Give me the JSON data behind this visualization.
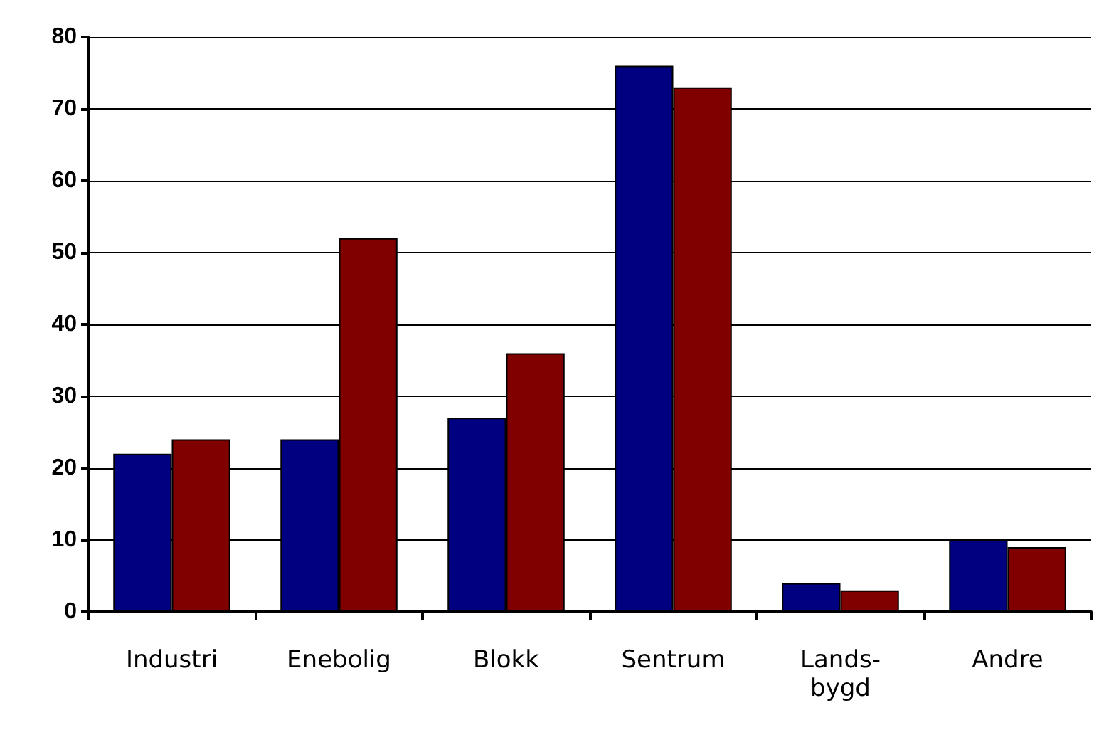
{
  "chart_data": {
    "type": "bar",
    "categories": [
      "Industri",
      "Enebolig",
      "Blokk",
      "Sentrum",
      "Lands-\nbygd",
      "Andre"
    ],
    "series": [
      {
        "color": "#000080",
        "values": [
          22,
          24,
          27,
          76,
          4,
          10
        ]
      },
      {
        "color": "#800000",
        "values": [
          24,
          52,
          36,
          73,
          3,
          9
        ]
      }
    ],
    "ylim": [
      0,
      80
    ],
    "yticks": [
      0,
      10,
      20,
      30,
      40,
      50,
      60,
      70,
      80
    ],
    "grid": "y"
  }
}
